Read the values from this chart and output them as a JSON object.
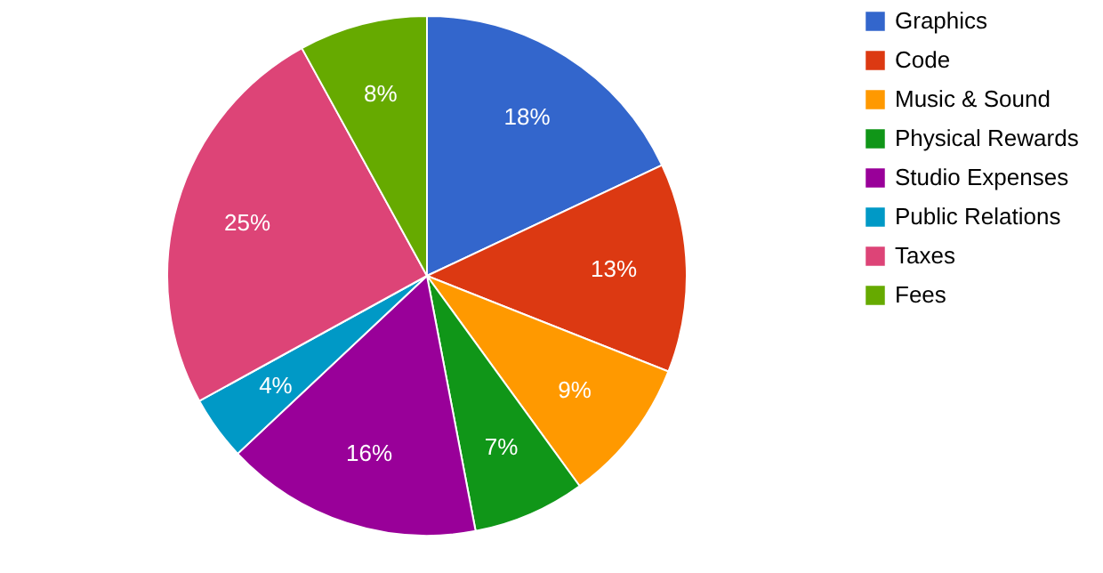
{
  "chart_data": {
    "type": "pie",
    "categories": [
      "Graphics",
      "Code",
      "Music & Sound",
      "Physical Rewards",
      "Studio Expenses",
      "Public Relations",
      "Taxes",
      "Fees"
    ],
    "values": [
      18,
      13,
      9,
      7,
      16,
      4,
      25,
      8
    ],
    "colors": [
      "#3366cc",
      "#dc3912",
      "#ff9900",
      "#109618",
      "#990099",
      "#0099c6",
      "#dd4477",
      "#66aa00"
    ],
    "value_labels": [
      "18%",
      "13%",
      "9%",
      "7%",
      "16%",
      "4%",
      "25%",
      "8%"
    ],
    "legend": "top right"
  }
}
